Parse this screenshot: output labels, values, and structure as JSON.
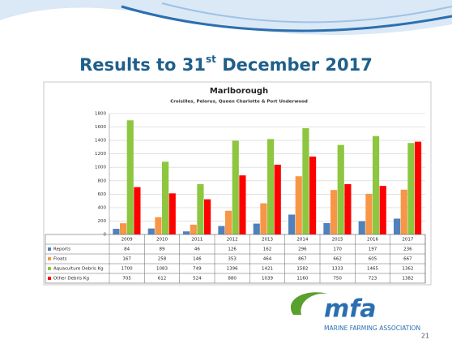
{
  "slide": {
    "title_parts": [
      "Results to 31",
      "st",
      " December 2017"
    ],
    "logo": {
      "mark": "mfa",
      "name": "MARINE FARMING ASSOCIATION"
    },
    "page_number": 21
  },
  "chart_data": {
    "type": "bar",
    "title": "Marlborough",
    "subtitle": "Croisilles, Pelorus, Queen Charlotte & Port Underwood",
    "categories": [
      "2009",
      "2010",
      "2011",
      "2012",
      "2013",
      "2014",
      "2015",
      "2016",
      "2017"
    ],
    "series": [
      {
        "name": "Reports",
        "color": "#4f81bd",
        "values": [
          84,
          89,
          46,
          126,
          162,
          296,
          170,
          197,
          236
        ]
      },
      {
        "name": "Floats",
        "color": "#f79646",
        "values": [
          167,
          258,
          146,
          353,
          464,
          867,
          662,
          605,
          667
        ]
      },
      {
        "name": "Aquaculture Debris Kg",
        "color": "#8dc63f",
        "values": [
          1700,
          1083,
          749,
          1396,
          1421,
          1582,
          1333,
          1465,
          1362
        ]
      },
      {
        "name": "Other Debris Kg",
        "color": "#ff0000",
        "values": [
          705,
          612,
          524,
          880,
          1039,
          1160,
          750,
          723,
          1382
        ]
      }
    ],
    "ylim": [
      0,
      1800
    ],
    "yticks": [
      0,
      200,
      400,
      600,
      800,
      1000,
      1200,
      1400,
      1600,
      1800
    ],
    "grid": true
  }
}
